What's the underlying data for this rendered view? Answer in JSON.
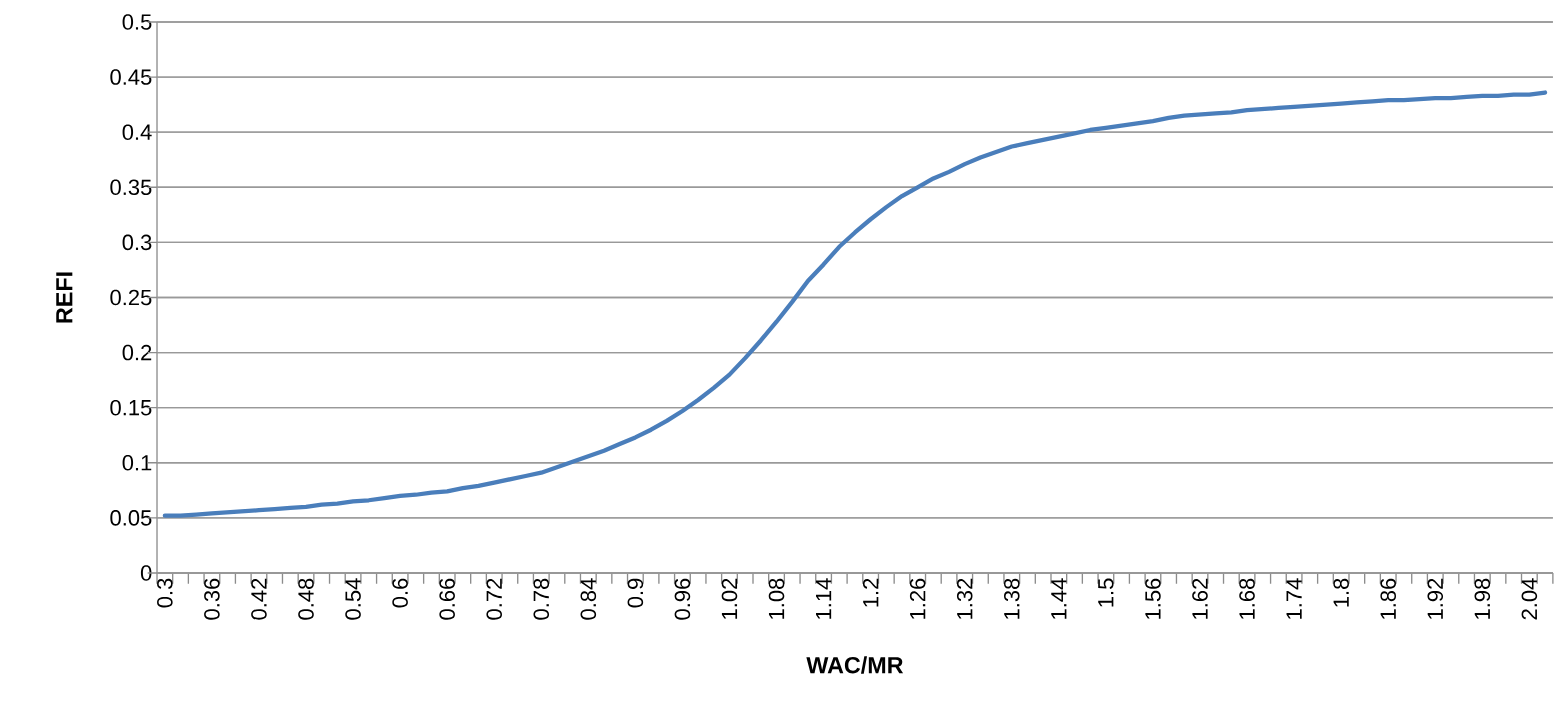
{
  "chart_data": {
    "type": "line",
    "xlabel": "WAC/MR",
    "ylabel": "REFI",
    "categories": [
      "0.3",
      null,
      null,
      "0.36",
      null,
      null,
      "0.42",
      null,
      null,
      "0.48",
      null,
      null,
      "0.54",
      null,
      null,
      "0.6",
      null,
      null,
      "0.66",
      null,
      null,
      "0.72",
      null,
      null,
      "0.78",
      null,
      null,
      "0.84",
      null,
      null,
      "0.9",
      null,
      null,
      "0.96",
      null,
      null,
      "1.02",
      null,
      null,
      "1.08",
      null,
      null,
      "1.14",
      null,
      null,
      "1.2",
      null,
      null,
      "1.26",
      null,
      null,
      "1.32",
      null,
      null,
      "1.38",
      null,
      null,
      "1.44",
      null,
      null,
      "1.5",
      null,
      null,
      "1.56",
      null,
      null,
      "1.62",
      null,
      null,
      "1.68",
      null,
      null,
      "1.74",
      null,
      null,
      "1.8",
      null,
      null,
      "1.86",
      null,
      null,
      "1.92",
      null,
      null,
      "1.98",
      null,
      null,
      "2.04",
      null
    ],
    "series": [
      {
        "color": "#4a7ebb",
        "values": [
          0.052,
          0.052,
          0.053,
          0.054,
          0.055,
          0.056,
          0.057,
          0.058,
          0.059,
          0.06,
          0.062,
          0.063,
          0.065,
          0.066,
          0.068,
          0.07,
          0.071,
          0.073,
          0.074,
          0.077,
          0.079,
          0.082,
          0.085,
          0.088,
          0.091,
          0.096,
          0.101,
          0.106,
          0.111,
          0.117,
          0.123,
          0.13,
          0.138,
          0.147,
          0.157,
          0.168,
          0.18,
          0.195,
          0.211,
          0.228,
          0.246,
          0.265,
          0.28,
          0.296,
          0.309,
          0.321,
          0.332,
          0.342,
          0.35,
          0.358,
          0.364,
          0.371,
          0.377,
          0.382,
          0.387,
          0.39,
          0.393,
          0.396,
          0.399,
          0.402,
          0.404,
          0.406,
          0.408,
          0.41,
          0.413,
          0.415,
          0.416,
          0.417,
          0.418,
          0.42,
          0.421,
          0.422,
          0.423,
          0.424,
          0.425,
          0.426,
          0.427,
          0.428,
          0.429,
          0.429,
          0.43,
          0.431,
          0.431,
          0.432,
          0.433,
          0.433,
          0.434,
          0.434,
          0.436
        ]
      }
    ],
    "ylim": [
      0,
      0.5
    ],
    "yticks": [
      0,
      0.05,
      0.1,
      0.15,
      0.2,
      0.25,
      0.3,
      0.35,
      0.4,
      0.45,
      0.5
    ],
    "grid": "y"
  }
}
